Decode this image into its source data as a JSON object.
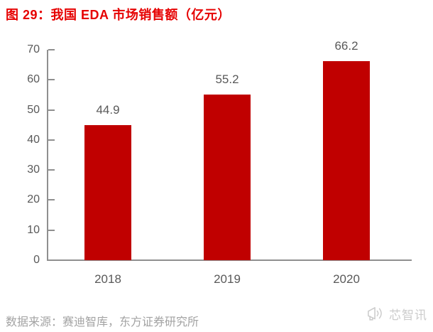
{
  "header": {
    "title": "图 29：我国 EDA 市场销售额（亿元）",
    "title_color": "#e60000"
  },
  "chart_data": {
    "type": "bar",
    "title": "图 29：我国 EDA 市场销售额（亿元）",
    "categories": [
      "2018",
      "2019",
      "2020"
    ],
    "values": [
      44.9,
      55.2,
      66.2
    ],
    "data_labels": [
      "44.9",
      "55.2",
      "66.2"
    ],
    "xlabel": "",
    "ylabel": "",
    "unit": "亿元",
    "ylim": [
      0,
      70
    ],
    "yticks": [
      0,
      10,
      20,
      30,
      40,
      50,
      60,
      70
    ],
    "grid": false,
    "legend": false,
    "bar_color": "#c00000",
    "axis_color": "#8f8f8f",
    "label_color": "#595959"
  },
  "footer": {
    "source_text": "数据来源：赛迪智库，东方证券研究所",
    "source_color": "#a3a3a3",
    "logo_icon": "megaphone-icon",
    "logo_text": "芯智讯",
    "logo_color": "#cccccc"
  }
}
